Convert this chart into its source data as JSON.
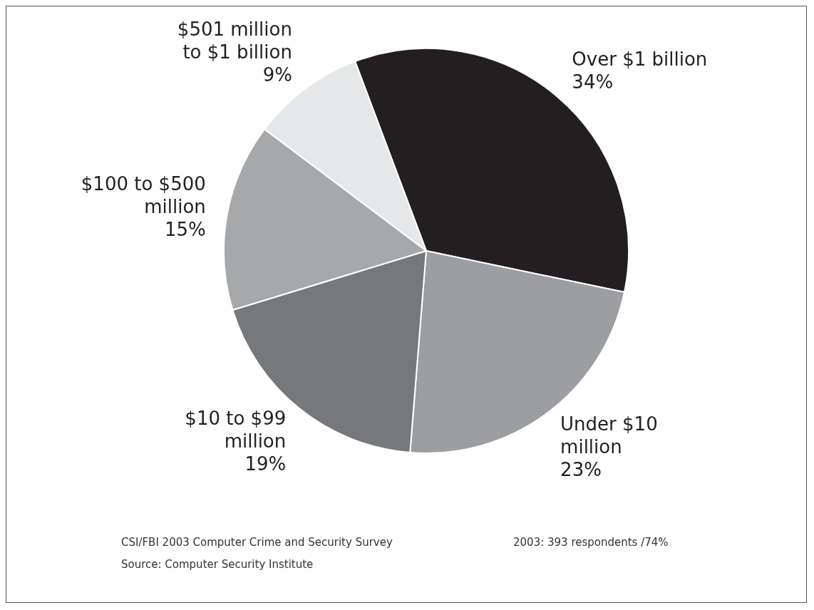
{
  "chart_data": {
    "type": "pie",
    "categories": [
      "Over $1 billion",
      "Under $10 million",
      "$10 to $99 million",
      "$100 to $500 million",
      "$501 million to $1 billion"
    ],
    "values": [
      34,
      23,
      19,
      15,
      9
    ],
    "colors": [
      "#231f20",
      "#9d9ea1",
      "#77787b",
      "#a7a8aa",
      "#e6e7e8"
    ],
    "value_labels": [
      "34%",
      "23%",
      "19%",
      "15%",
      "9%"
    ],
    "legend": false,
    "annotations": [
      "CSI/FBI 2003 Computer Crime and Security Survey",
      "Source: Computer Security Institute",
      "2003: 393 respondents /74%"
    ]
  }
}
